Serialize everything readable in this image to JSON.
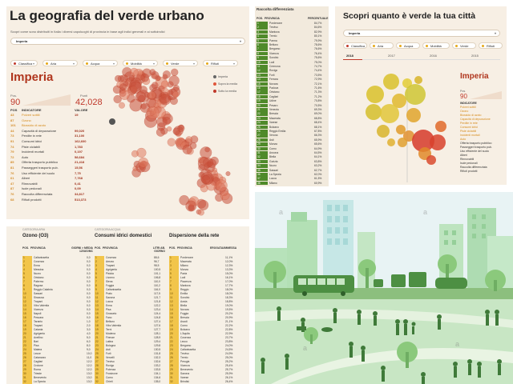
{
  "panel_a": {
    "title": "La geografia del verde urbano",
    "subtitle": "Scopri come sono distribuiti in Italia i diversi capoluoghi di provincia in base agli indici generali e ai sottoindici",
    "select_value": "Imperia",
    "categories": [
      {
        "label": "Classifica",
        "color": "#c0392b"
      },
      {
        "label": "Aria",
        "color": "#e6a91a"
      },
      {
        "label": "Acqua",
        "color": "#e6a91a"
      },
      {
        "label": "Mobilità",
        "color": "#e6a91a"
      },
      {
        "label": "Verde",
        "color": "#e6a91a"
      },
      {
        "label": "Rifiuti",
        "color": "#e6a91a"
      }
    ],
    "city": "Imperia",
    "pos_label": "Pos.",
    "pos_value": "90",
    "punti_label": "Punti",
    "punti_value": "42,028",
    "table_head": {
      "pos": "POS",
      "indicatore": "INDICATORE",
      "valore": "VALORE"
    },
    "rows": [
      {
        "pos": "43",
        "name": "Polveri sottili",
        "value": "19",
        "hi": true
      },
      {
        "pos": "87",
        "name": "Ozono",
        "value": "",
        "hi": true
      },
      {
        "pos": "101",
        "name": "Biossido di azoto",
        "value": "",
        "hi": true
      },
      {
        "pos": "44",
        "name": "Capacità di depurazione",
        "value": "99,020",
        "hi": false
      },
      {
        "pos": "73",
        "name": "Perdite in rete",
        "value": "31,100",
        "hi": false
      },
      {
        "pos": "91",
        "name": "Consumi idrici",
        "value": "162,600",
        "hi": false
      },
      {
        "pos": "74",
        "name": "Piste ciclabili",
        "value": "1,783",
        "hi": false
      },
      {
        "pos": "79",
        "name": "Incidenti mortali",
        "value": "0,197",
        "hi": false
      },
      {
        "pos": "72",
        "name": "Auto",
        "value": "58,684",
        "hi": false
      },
      {
        "pos": "85",
        "name": "Offerta trasporto pubblico",
        "value": "21,418",
        "hi": false
      },
      {
        "pos": "81",
        "name": "Passeggeri trasporto pub.",
        "value": "15,56",
        "hi": false
      },
      {
        "pos": "76",
        "name": "Uso efficiente del suolo",
        "value": "7,75",
        "hi": false
      },
      {
        "pos": "61",
        "name": "Alberi",
        "value": "7,768",
        "hi": false
      },
      {
        "pos": "47",
        "name": "Rinnovabili",
        "value": "0,41",
        "hi": false
      },
      {
        "pos": "87",
        "name": "Isole pedonali",
        "value": "0,09",
        "hi": false
      },
      {
        "pos": "76",
        "name": "Raccolta differenziata",
        "value": "34,817",
        "hi": false
      },
      {
        "pos": "68",
        "name": "Rifiuti prodotti",
        "value": "513,373",
        "hi": false
      }
    ],
    "legend": [
      {
        "label": "Imperia",
        "color": "#666666"
      },
      {
        "label": "Sopra la media",
        "color": "#e0553a"
      },
      {
        "label": "Sotto la media",
        "color": "#c0392b"
      }
    ]
  },
  "panel_b": {
    "title": "Raccolta differenziata",
    "head_pos": "POS.",
    "head_prov": "PROVINCIA",
    "head_val": "PERCENTUALE",
    "rows": [
      {
        "c": "Pordenone",
        "v": "84,7%"
      },
      {
        "c": "Treviso",
        "v": "84,6%"
      },
      {
        "c": "Mantova",
        "v": "82,9%"
      },
      {
        "c": "Trento",
        "v": "80,1%"
      },
      {
        "c": "Parma",
        "v": "79,9%"
      },
      {
        "c": "Belluno",
        "v": "78,6%"
      },
      {
        "c": "Bergamo",
        "v": "76,6%"
      },
      {
        "c": "Vicenza",
        "v": "76,4%"
      },
      {
        "c": "Sondrio",
        "v": "75,6%"
      },
      {
        "c": "Lodi",
        "v": "75,0%"
      },
      {
        "c": "Cremona",
        "v": "74,7%"
      },
      {
        "c": "Rovigo",
        "v": "74,4%"
      },
      {
        "c": "Forlì",
        "v": "73,5%"
      },
      {
        "c": "Ferrara",
        "v": "72,9%"
      },
      {
        "c": "Novara",
        "v": "72,1%"
      },
      {
        "c": "Padova",
        "v": "71,6%"
      },
      {
        "c": "Oristano",
        "v": "71,3%"
      },
      {
        "c": "Cagliari",
        "v": "71,2%"
      },
      {
        "c": "Udine",
        "v": "70,8%"
      },
      {
        "c": "Pesaro",
        "v": "70,5%"
      },
      {
        "c": "Venezia",
        "v": "69,3%"
      },
      {
        "c": "Brescia",
        "v": "69,0%"
      },
      {
        "c": "Macerata",
        "v": "68,8%"
      },
      {
        "c": "Varese",
        "v": "68,4%"
      },
      {
        "c": "Bolzano",
        "v": "68,1%"
      },
      {
        "c": "Reggio Emilia",
        "v": "67,8%"
      },
      {
        "c": "Verona",
        "v": "66,3%"
      },
      {
        "c": "Asti",
        "v": "65,9%"
      },
      {
        "c": "Monza",
        "v": "65,6%"
      },
      {
        "c": "Como",
        "v": "64,9%"
      },
      {
        "c": "Ancona",
        "v": "64,5%"
      },
      {
        "c": "Biella",
        "v": "64,1%"
      },
      {
        "c": "Gorizia",
        "v": "63,8%"
      },
      {
        "c": "Nuoro",
        "v": "63,2%"
      },
      {
        "c": "Sassari",
        "v": "62,7%"
      },
      {
        "c": "La Spezia",
        "v": "62,0%"
      },
      {
        "c": "Lucca",
        "v": "61,5%"
      },
      {
        "c": "Milano",
        "v": "60,9%"
      }
    ]
  },
  "panel_c": {
    "title": "Scopri quanto è verde la tua città",
    "select_value": "Imperia",
    "categories": [
      {
        "label": "Classifica",
        "color": "#c0392b"
      },
      {
        "label": "Aria",
        "color": "#e6a91a"
      },
      {
        "label": "Acqua",
        "color": "#e6a91a"
      },
      {
        "label": "Mobilità",
        "color": "#e6a91a"
      },
      {
        "label": "Verde",
        "color": "#e6a91a"
      },
      {
        "label": "Rifiuti",
        "color": "#e6a91a"
      }
    ],
    "years": [
      "2018",
      "2017",
      "2016",
      "2015"
    ],
    "city": "Imperia",
    "pos_label": "Pos.",
    "pos_value": "90",
    "head": "INDICATORE",
    "indicators": [
      "Polveri sottili",
      "Ozono",
      "Biossido di azoto",
      "Capacità di depurazione",
      "Perdite in rete",
      "Consumi idrici",
      "Piste ciclabili",
      "Incidenti mortali",
      "Auto",
      "Offerta trasporto pubblico",
      "Passeggeri trasporto pub.",
      "Uso efficiente del suolo",
      "Alberi",
      "Rinnovabili",
      "Isole pedonali",
      "Raccolta differenziata",
      "Rifiuti prodotti"
    ]
  },
  "panel_d": {
    "col1": {
      "category": "CATEGORIA ARIA",
      "title": "Ozono (O3)",
      "h_pos": "POS.",
      "h_prov": "PROVINCIA",
      "h_val": "GIORNI > MEDIA 120UG/MC",
      "rows": [
        {
          "c": "Caltanissetta",
          "v": "0,0"
        },
        {
          "c": "Cosenza",
          "v": "0,0"
        },
        {
          "c": "Enna",
          "v": "0,0"
        },
        {
          "c": "Messina",
          "v": "0,0"
        },
        {
          "c": "Nuoro",
          "v": "0,0"
        },
        {
          "c": "Oristano",
          "v": "0,0"
        },
        {
          "c": "Palermo",
          "v": "0,0"
        },
        {
          "c": "Ragusa",
          "v": "0,0"
        },
        {
          "c": "Reggio Calabria",
          "v": "0,0"
        },
        {
          "c": "Sassari",
          "v": "0,0"
        },
        {
          "c": "Siracusa",
          "v": "0,0"
        },
        {
          "c": "Trapani",
          "v": "0,0"
        },
        {
          "c": "Vibo Valentia",
          "v": "0,0"
        },
        {
          "c": "Vicenza",
          "v": "0,0"
        },
        {
          "c": "Napoli",
          "v": "0,0"
        },
        {
          "c": "Pescara",
          "v": "0,0"
        },
        {
          "c": "Taranto",
          "v": "1,0"
        },
        {
          "c": "Trapani",
          "v": "2,0"
        },
        {
          "c": "Catania",
          "v": "3,0"
        },
        {
          "c": "Agrigento",
          "v": "4,0"
        },
        {
          "c": "Avellino",
          "v": "5,0"
        },
        {
          "c": "Bari",
          "v": "6,0"
        },
        {
          "c": "Pisa",
          "v": "8,0"
        },
        {
          "c": "Matera",
          "v": "9,0"
        },
        {
          "c": "Lecce",
          "v": "10,0"
        },
        {
          "c": "Catanzaro",
          "v": "11,0"
        },
        {
          "c": "Cagliari",
          "v": "12,0"
        },
        {
          "c": "Crotone",
          "v": "12,0"
        },
        {
          "c": "Roma",
          "v": "12,0"
        },
        {
          "c": "Trieste",
          "v": "13,0"
        },
        {
          "c": "Benevento",
          "v": "13,0"
        },
        {
          "c": "La Spezia",
          "v": "13,0"
        }
      ]
    },
    "col2": {
      "category": "CATEGORIA ACQUA",
      "title": "Consumi idrici domestici",
      "h_pos": "POS.",
      "h_prov": "PROVINCIA",
      "h_val": "LITRI AB. GIORNO",
      "rows": [
        {
          "c": "Cosenza",
          "v": "88,6"
        },
        {
          "c": "Arezzo",
          "v": "96,7"
        },
        {
          "c": "Trapani",
          "v": "98,5"
        },
        {
          "c": "Agrigento",
          "v": "100,5"
        },
        {
          "c": "Pistoia",
          "v": "101,1"
        },
        {
          "c": "Livorno",
          "v": "106,8"
        },
        {
          "c": "Siena",
          "v": "110,0"
        },
        {
          "c": "Foggia",
          "v": "110,2"
        },
        {
          "c": "Caltanissetta",
          "v": "116,0"
        },
        {
          "c": "Prato",
          "v": "117,5"
        },
        {
          "c": "Savona",
          "v": "121,7"
        },
        {
          "c": "Lucca",
          "v": "121,8"
        },
        {
          "c": "Enna",
          "v": "122,2"
        },
        {
          "c": "Pisa",
          "v": "123,4"
        },
        {
          "c": "Grosseto",
          "v": "124,4"
        },
        {
          "c": "Fano",
          "v": "124,8"
        },
        {
          "c": "Belluno",
          "v": "127,4"
        },
        {
          "c": "Vibo Valentia",
          "v": "127,6"
        },
        {
          "c": "Terni",
          "v": "127,7"
        },
        {
          "c": "Modena",
          "v": "128,1"
        },
        {
          "c": "Firenze",
          "v": "128,9"
        },
        {
          "c": "Latina",
          "v": "129,4"
        },
        {
          "c": "Bologna",
          "v": "129,8"
        },
        {
          "c": "Asti",
          "v": "130,5"
        },
        {
          "c": "Forlì",
          "v": "131,8"
        },
        {
          "c": "Vercelli",
          "v": "132,3"
        },
        {
          "c": "Treviso",
          "v": "132,6"
        },
        {
          "c": "Rovigo",
          "v": "133,2"
        },
        {
          "c": "Potenza",
          "v": "133,5"
        },
        {
          "c": "Frosinone",
          "v": "134,1"
        },
        {
          "c": "Como",
          "v": "134,6"
        },
        {
          "c": "Chieti",
          "v": "135,0"
        }
      ]
    },
    "col3": {
      "category": "",
      "title": "Dispersione della rete",
      "h_pos": "POS.",
      "h_prov": "PROVINCIA",
      "h_val": "EROGATA/IMMESSA",
      "rows": [
        {
          "c": "Pordenone",
          "v": "11,1%"
        },
        {
          "c": "Macerata",
          "v": "12,0%"
        },
        {
          "c": "Milano",
          "v": "12,3%"
        },
        {
          "c": "Monza",
          "v": "13,3%"
        },
        {
          "c": "Pavia",
          "v": "15,0%"
        },
        {
          "c": "Lodi",
          "v": "16,1%"
        },
        {
          "c": "Piacenza",
          "v": "17,0%"
        },
        {
          "c": "Mantova",
          "v": "17,7%"
        },
        {
          "c": "Reggio",
          "v": "18,0%"
        },
        {
          "c": "Emilia",
          "v": "18,0%"
        },
        {
          "c": "Sondrio",
          "v": "18,3%"
        },
        {
          "c": "Aosta",
          "v": "18,8%"
        },
        {
          "c": "Biella",
          "v": "19,0%"
        },
        {
          "c": "Novara",
          "v": "19,5%"
        },
        {
          "c": "Foggia",
          "v": "20,2%"
        },
        {
          "c": "Brescia",
          "v": "20,9%"
        },
        {
          "c": "Ascoli",
          "v": "21,1%"
        },
        {
          "c": "Como",
          "v": "22,2%"
        },
        {
          "c": "Bolzano",
          "v": "22,8%"
        },
        {
          "c": "L'Aquila",
          "v": "22,9%"
        },
        {
          "c": "Cosenza",
          "v": "23,7%"
        },
        {
          "c": "Lecco",
          "v": "23,8%"
        },
        {
          "c": "Bergamo",
          "v": "24,0%"
        },
        {
          "c": "Caltanissetta",
          "v": "24,5%"
        },
        {
          "c": "Treviso",
          "v": "24,9%"
        },
        {
          "c": "Trento",
          "v": "25,0%"
        },
        {
          "c": "Perugia",
          "v": "25,2%"
        },
        {
          "c": "Vicenza",
          "v": "25,4%"
        },
        {
          "c": "Benevento",
          "v": "25,7%"
        },
        {
          "c": "Savona",
          "v": "25,9%"
        },
        {
          "c": "Varese",
          "v": "26,1%"
        },
        {
          "c": "Brindisi",
          "v": "26,4%"
        }
      ]
    }
  },
  "panel_e": {
    "watermark": "a"
  }
}
